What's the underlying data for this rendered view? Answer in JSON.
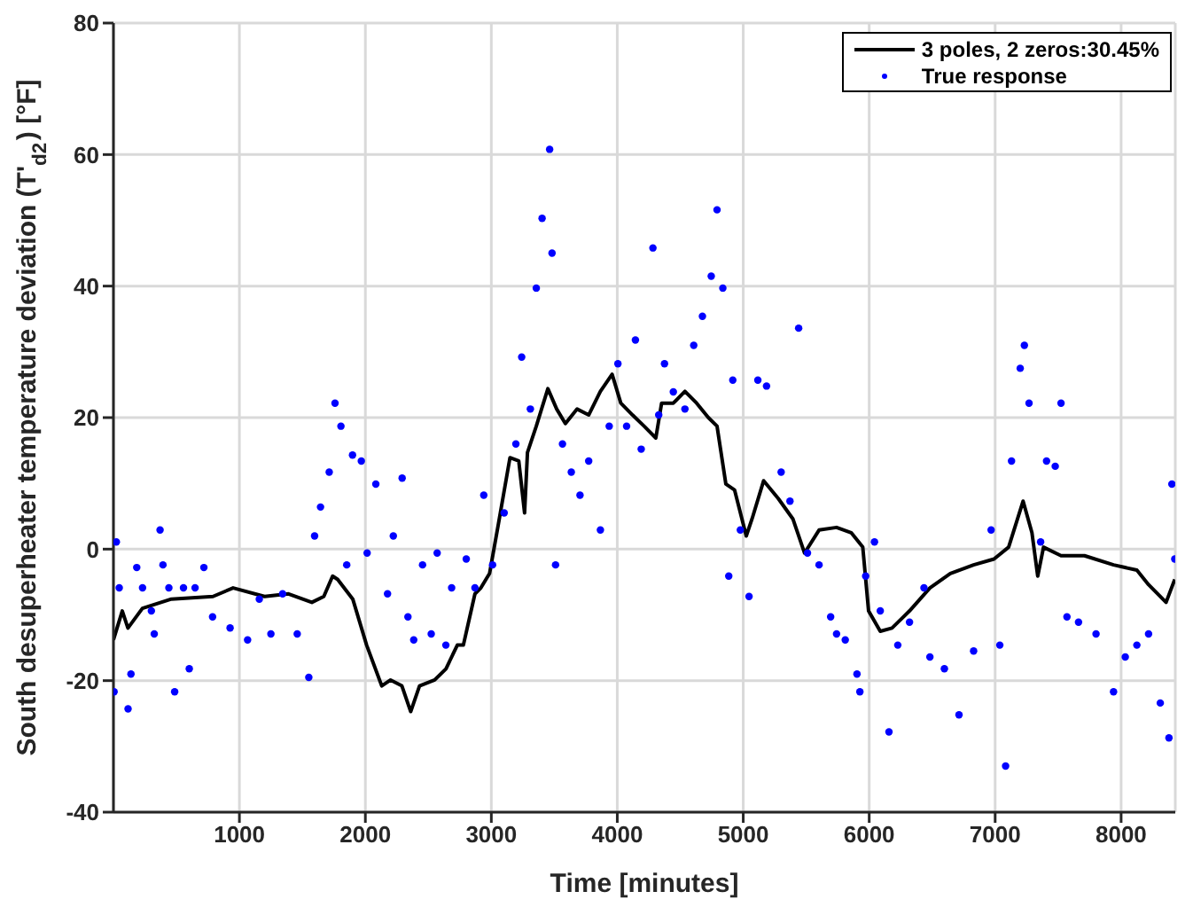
{
  "chart_data": {
    "type": "scatter",
    "xlabel": "Time [minutes]",
    "ylabel": "South desuperheater temperature deviation (T'$_{d2}$) [°F]",
    "xlim": [
      0,
      8430
    ],
    "xticks": [
      1000,
      2000,
      3000,
      4000,
      5000,
      6000,
      7000,
      8000
    ],
    "ylim": [
      -40,
      80
    ],
    "yticks": [
      -40,
      -20,
      0,
      20,
      40,
      60,
      80
    ],
    "grid": true,
    "legend": "top right",
    "series": [
      {
        "name": "3 poles, 2 zeros:30.45%",
        "type": "line",
        "color": "#000000",
        "line_style": "solid",
        "marker": "none",
        "x": [
          0,
          70,
          115,
          230,
          460,
          790,
          950,
          1200,
          1390,
          1575,
          1670,
          1740,
          1780,
          1900,
          2010,
          2130,
          2200,
          2290,
          2360,
          2430,
          2550,
          2640,
          2730,
          2778,
          2870,
          2917,
          2986,
          3056,
          3148,
          3218,
          3264,
          3287,
          3357,
          3449,
          3519,
          3588,
          3681,
          3773,
          3866,
          3959,
          4028,
          4121,
          4213,
          4306,
          4352,
          4445,
          4537,
          4630,
          4723,
          4792,
          4862,
          4931,
          5024,
          5070,
          5162,
          5278,
          5394,
          5487,
          5602,
          5741,
          5857,
          5949,
          5995,
          6088,
          6181,
          6320,
          6482,
          6644,
          6829,
          6991,
          7107,
          7222,
          7292,
          7338,
          7384,
          7523,
          7709,
          7940,
          8125,
          8218,
          8357,
          8426
        ],
        "values": [
          -13.8,
          -9.4,
          -12,
          -9,
          -7.6,
          -7.2,
          -5.9,
          -7.2,
          -6.8,
          -8.1,
          -7.2,
          -4.1,
          -4.6,
          -7.6,
          -14.6,
          -20.8,
          -19.9,
          -20.8,
          -24.7,
          -20.8,
          -19.9,
          -18.2,
          -14.6,
          -14.6,
          -6.8,
          -5.9,
          -3.7,
          3.8,
          13.9,
          13.4,
          5.5,
          14.7,
          18.7,
          24.4,
          21.3,
          19.1,
          21.3,
          20.4,
          24,
          26.6,
          22.2,
          20.4,
          18.7,
          16.9,
          22.2,
          22.2,
          24,
          22.2,
          20,
          18.7,
          9.9,
          9,
          2,
          4.6,
          10.4,
          7.7,
          4.6,
          -0.6,
          2.9,
          3.3,
          2.5,
          0.3,
          -9.4,
          -12.5,
          -12,
          -9.4,
          -5.9,
          -3.7,
          -2.4,
          -1.5,
          0.3,
          7.3,
          2.5,
          -4.1,
          0.3,
          -1,
          -1,
          -2.4,
          -3.2,
          -5.4,
          -8.1,
          -4.6
        ]
      },
      {
        "name": "True response",
        "color": "#0000ff",
        "marker": "circle",
        "x": [
          5,
          23,
          46,
          116,
          139,
          185,
          231,
          301,
          324,
          370,
          393,
          440,
          486,
          556,
          602,
          648,
          718,
          787,
          926,
          1065,
          1158,
          1250,
          1343,
          1459,
          1551,
          1597,
          1644,
          1713,
          1759,
          1806,
          1852,
          1898,
          1968,
          2014,
          2083,
          2176,
          2222,
          2292,
          2338,
          2384,
          2454,
          2523,
          2570,
          2639,
          2685,
          2801,
          2870,
          2940,
          3010,
          3102,
          3195,
          3241,
          3310,
          3357,
          3403,
          3463,
          3482,
          3510,
          3565,
          3635,
          3704,
          3773,
          3866,
          3936,
          4005,
          4074,
          4144,
          4190,
          4283,
          4329,
          4375,
          4445,
          4537,
          4607,
          4676,
          4746,
          4792,
          4838,
          4885,
          4917,
          4977,
          5046,
          5116,
          5185,
          5301,
          5371,
          5440,
          5510,
          5602,
          5694,
          5741,
          5810,
          5903,
          5926,
          5972,
          6042,
          6088,
          6157,
          6227,
          6320,
          6435,
          6482,
          6597,
          6713,
          6829,
          6968,
          7037,
          7083,
          7130,
          7199,
          7232,
          7269,
          7361,
          7408,
          7477,
          7523,
          7570,
          7662,
          7801,
          7940,
          8033,
          8125,
          8218,
          8311,
          8380,
          8403,
          8426
        ],
        "values": [
          -21.7,
          1.1,
          -5.9,
          -24.3,
          -19,
          -2.8,
          -5.9,
          -9.4,
          -12.9,
          2.9,
          -2.4,
          -5.9,
          -21.7,
          -5.9,
          -18.2,
          -5.9,
          -2.8,
          -10.3,
          -12,
          -13.8,
          -7.6,
          -12.9,
          -6.8,
          -12.9,
          -19.5,
          2,
          6.4,
          11.7,
          22.2,
          18.7,
          -2.4,
          14.3,
          13.4,
          -0.6,
          9.9,
          -6.8,
          2,
          10.8,
          -10.3,
          -13.8,
          -2.4,
          -12.9,
          -0.6,
          -14.6,
          -5.9,
          -1.5,
          -5.9,
          8.2,
          -2.4,
          5.5,
          16,
          29.2,
          21.3,
          39.7,
          50.3,
          60.8,
          45,
          -2.4,
          16,
          11.7,
          8.2,
          13.4,
          2.9,
          18.7,
          28.2,
          18.7,
          31.8,
          15.2,
          45.8,
          20.4,
          28.2,
          23.9,
          21.3,
          31,
          35.4,
          41.5,
          51.6,
          39.7,
          -4.1,
          25.7,
          2.9,
          -7.2,
          25.7,
          24.8,
          11.7,
          7.3,
          33.6,
          -0.6,
          -2.4,
          -10.3,
          -12.9,
          -13.8,
          -19,
          -21.7,
          -4.1,
          1.1,
          -9.4,
          -27.8,
          -14.6,
          -11.1,
          -5.9,
          -16.4,
          -18.2,
          -25.2,
          -15.5,
          2.9,
          -14.6,
          -33,
          13.4,
          27.5,
          31,
          22.2,
          1.1,
          13.4,
          12.6,
          22.2,
          -10.3,
          -11.1,
          -12.9,
          -21.7,
          -16.4,
          -14.6,
          -12.9,
          -23.4,
          -28.7,
          9.9,
          -1.5
        ]
      }
    ]
  }
}
